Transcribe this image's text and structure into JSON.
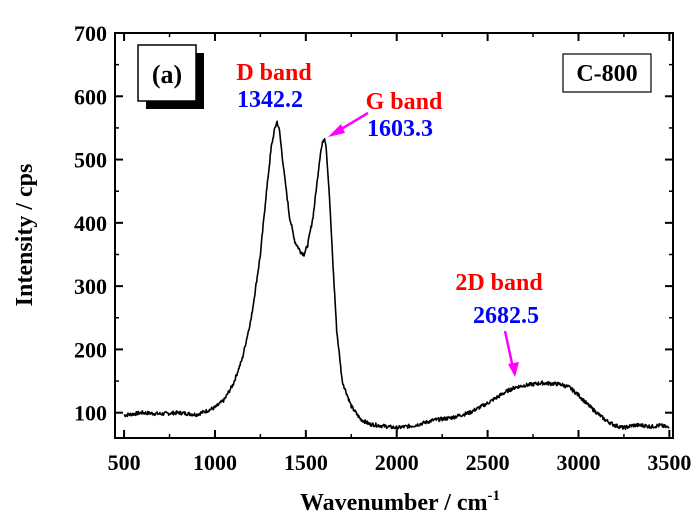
{
  "chart_data": {
    "type": "line",
    "xlabel": "Wavenumber / cm",
    "xlabel_superscript": "-1",
    "ylabel": "Intensity / cps",
    "xlim": [
      450,
      3520
    ],
    "ylim": [
      60,
      700
    ],
    "xticks": [
      500,
      1000,
      1500,
      2000,
      2500,
      3000,
      3500
    ],
    "yticks": [
      100,
      200,
      300,
      400,
      500,
      600,
      700
    ],
    "panel_label": "(a)",
    "sample_label": "C-800",
    "series": [
      {
        "color": "#000000",
        "x": [
          500,
          600,
          700,
          800,
          900,
          1000,
          1050,
          1100,
          1150,
          1200,
          1250,
          1280,
          1310,
          1330,
          1342,
          1355,
          1380,
          1410,
          1440,
          1470,
          1490,
          1510,
          1540,
          1560,
          1580,
          1595,
          1603,
          1612,
          1630,
          1650,
          1670,
          1700,
          1750,
          1800,
          1850,
          1900,
          1950,
          2000,
          2100,
          2200,
          2300,
          2400,
          2500,
          2600,
          2650,
          2700,
          2750,
          2800,
          2850,
          2900,
          2950,
          3000,
          3050,
          3100,
          3150,
          3200,
          3250,
          3300,
          3350,
          3400,
          3450,
          3500
        ],
        "y": [
          96,
          100,
          98,
          100,
          97,
          108,
          120,
          145,
          185,
          250,
          350,
          440,
          520,
          550,
          560,
          545,
          480,
          410,
          370,
          355,
          350,
          365,
          410,
          460,
          510,
          530,
          535,
          520,
          440,
          330,
          230,
          150,
          110,
          90,
          82,
          80,
          78,
          76,
          80,
          88,
          92,
          100,
          115,
          133,
          140,
          143,
          145,
          147,
          146,
          145,
          140,
          128,
          113,
          100,
          88,
          80,
          76,
          80,
          80,
          78,
          80,
          76
        ]
      }
    ],
    "annotations": [
      {
        "label": "D band",
        "value": "1342.2",
        "label_color": "#ff0000",
        "value_color": "#0000ff"
      },
      {
        "label": "G band",
        "value": "1603.3",
        "label_color": "#ff0000",
        "value_color": "#0000ff",
        "arrow_color": "#ff00ff"
      },
      {
        "label": "2D band",
        "value": "2682.5",
        "label_color": "#ff0000",
        "value_color": "#0000ff",
        "arrow_color": "#ff00ff"
      }
    ]
  }
}
